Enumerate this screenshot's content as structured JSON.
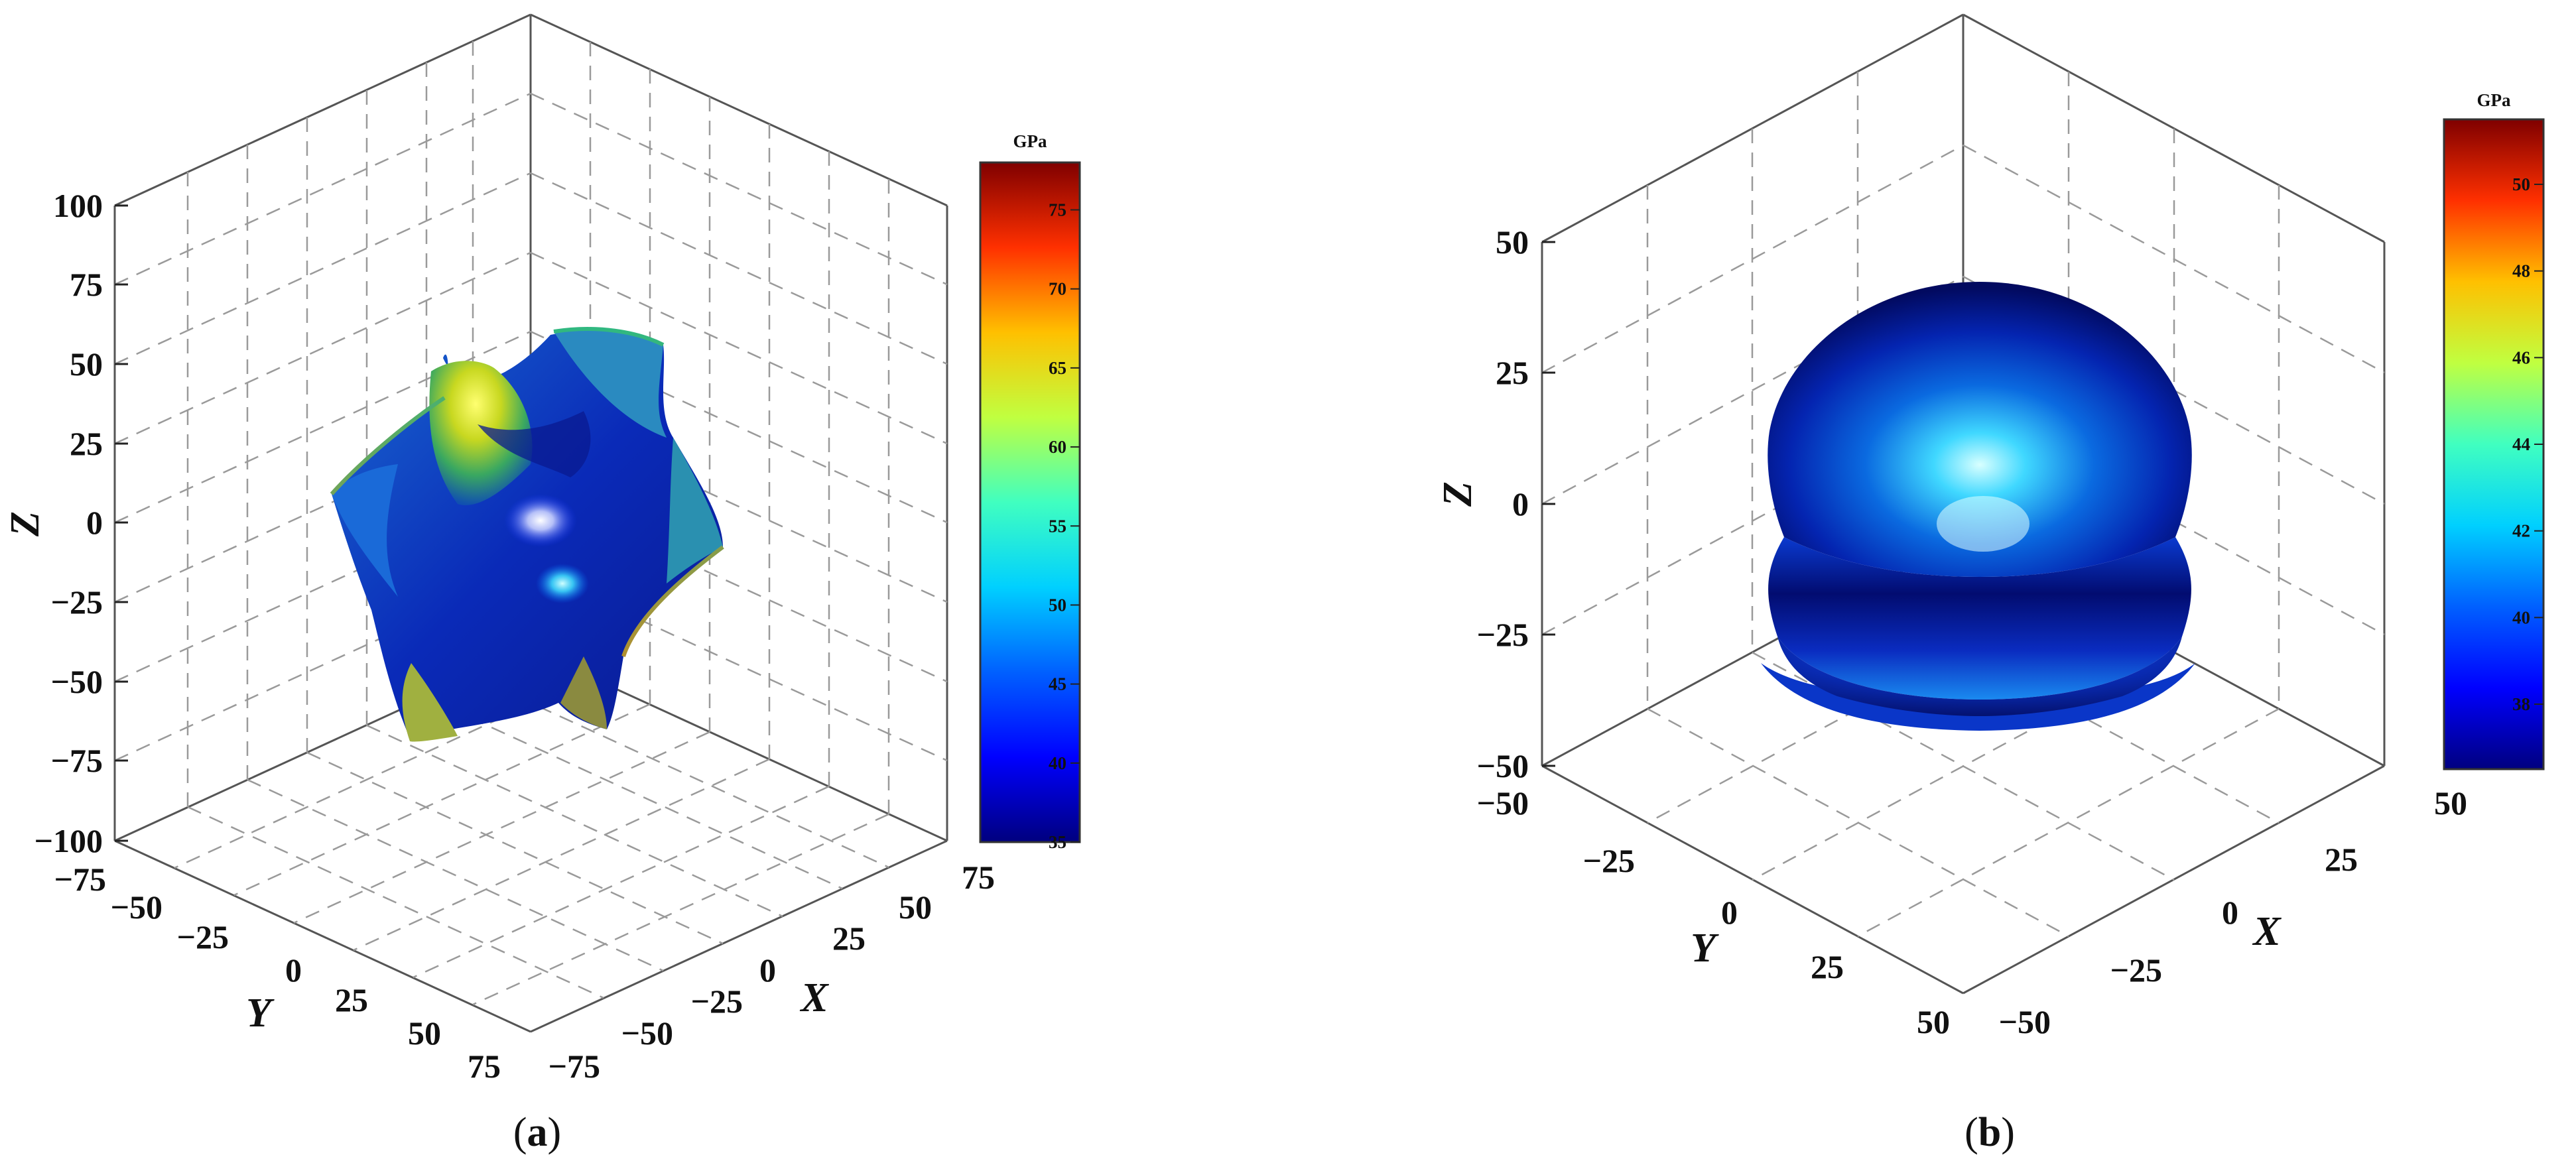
{
  "chart_data": [
    {
      "type": "3d-surface",
      "panel": "a",
      "caption_open": "(",
      "caption_letter": "a",
      "caption_close": ")",
      "zlabel": "Z",
      "xlabel": "X",
      "ylabel": "Y",
      "zlim": [
        -100,
        100
      ],
      "xlim": [
        -75,
        75
      ],
      "ylim": [
        -75,
        75
      ],
      "z_ticks": [
        "100",
        "75",
        "50",
        "25",
        "0",
        "−25",
        "−50",
        "−75",
        "−100"
      ],
      "y_ticks": [
        "−75",
        "−50",
        "−25",
        "0",
        "25",
        "50",
        "75"
      ],
      "x_ticks": [
        "−75",
        "−50",
        "−25",
        "0",
        "25",
        "50",
        "75"
      ],
      "grid": true,
      "colorbar": {
        "title": "GPa",
        "min": 35,
        "max": 78,
        "ticks": [
          "75",
          "70",
          "65",
          "60",
          "55",
          "50",
          "45",
          "40",
          "35"
        ]
      }
    },
    {
      "type": "3d-surface",
      "panel": "b",
      "caption_open": "(",
      "caption_letter": "b",
      "caption_close": ")",
      "zlabel": "Z",
      "xlabel": "X",
      "ylabel": "Y",
      "zlim": [
        -50,
        50
      ],
      "xlim": [
        -50,
        50
      ],
      "ylim": [
        -50,
        50
      ],
      "z_ticks": [
        "50",
        "25",
        "0",
        "−25",
        "−50"
      ],
      "y_ticks": [
        "−50",
        "−25",
        "0",
        "25",
        "50"
      ],
      "x_ticks": [
        "−50",
        "−25",
        "0",
        "25",
        "50"
      ],
      "grid": true,
      "colorbar": {
        "title": "GPa",
        "min": 36.5,
        "max": 51.5,
        "ticks": [
          "50",
          "48",
          "46",
          "44",
          "42",
          "40",
          "38"
        ]
      }
    }
  ],
  "colormap": [
    "#00007f",
    "#0000ff",
    "#007fff",
    "#00ffff",
    "#7fff7f",
    "#ffff00",
    "#ff7f00",
    "#ff0000",
    "#7f0000"
  ]
}
